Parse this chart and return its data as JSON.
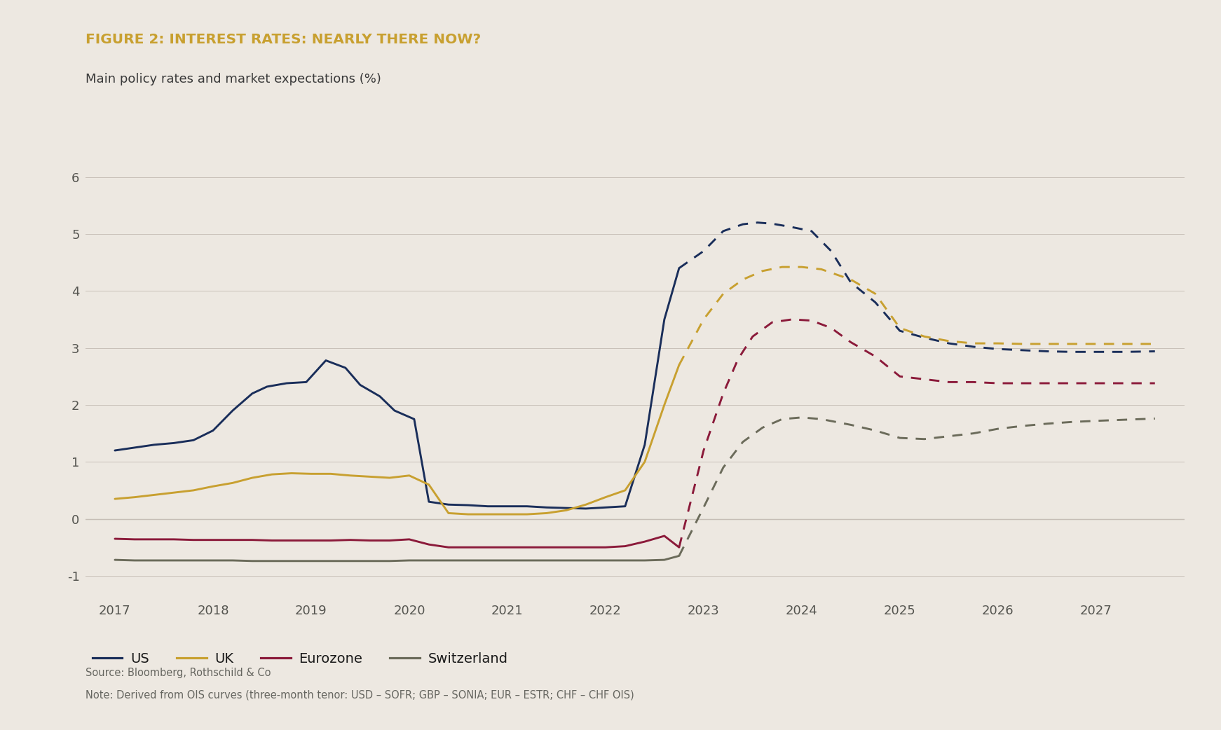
{
  "title": "FIGURE 2: INTEREST RATES: NEARLY THERE NOW?",
  "subtitle": "Main policy rates and market expectations (%)",
  "source": "Source: Bloomberg, Rothschild & Co",
  "note": "Note: Derived from OIS curves (three-month tenor: USD – SOFR; GBP – SONIA; EUR – ESTR; CHF – CHF OIS)",
  "background_color": "#ede8e1",
  "title_color": "#c8a030",
  "subtitle_color": "#3a3a3a",
  "ylim": [
    -1.4,
    6.8
  ],
  "yticks": [
    -1,
    0,
    1,
    2,
    3,
    4,
    5,
    6
  ],
  "colors": {
    "US": "#1a2e5a",
    "UK": "#c8a030",
    "Eurozone": "#8b1a3a",
    "Switzerland": "#6b6b5a"
  },
  "series": {
    "US": {
      "solid_x": [
        2017.0,
        2017.2,
        2017.4,
        2017.6,
        2017.8,
        2018.0,
        2018.2,
        2018.4,
        2018.55,
        2018.75,
        2018.95,
        2019.15,
        2019.35,
        2019.5,
        2019.7,
        2019.85,
        2020.05,
        2020.2,
        2020.4,
        2020.6,
        2020.8,
        2021.0,
        2021.2,
        2021.4,
        2021.6,
        2021.8,
        2022.0,
        2022.2,
        2022.4,
        2022.6,
        2022.75
      ],
      "solid_y": [
        1.2,
        1.25,
        1.3,
        1.33,
        1.38,
        1.55,
        1.9,
        2.2,
        2.32,
        2.38,
        2.4,
        2.78,
        2.65,
        2.35,
        2.15,
        1.9,
        1.75,
        0.3,
        0.25,
        0.24,
        0.22,
        0.22,
        0.22,
        0.2,
        0.19,
        0.18,
        0.2,
        0.22,
        1.3,
        3.5,
        4.4
      ],
      "dash_x": [
        2022.75,
        2023.0,
        2023.2,
        2023.4,
        2023.55,
        2023.7,
        2023.9,
        2024.1,
        2024.3,
        2024.5,
        2024.75,
        2025.0,
        2025.25,
        2025.5,
        2025.75,
        2026.0,
        2026.25,
        2026.5,
        2026.75,
        2027.0,
        2027.3,
        2027.6
      ],
      "dash_y": [
        4.4,
        4.7,
        5.05,
        5.17,
        5.2,
        5.18,
        5.12,
        5.05,
        4.7,
        4.15,
        3.8,
        3.3,
        3.18,
        3.08,
        3.02,
        2.98,
        2.96,
        2.94,
        2.93,
        2.93,
        2.93,
        2.94
      ]
    },
    "UK": {
      "solid_x": [
        2017.0,
        2017.2,
        2017.4,
        2017.6,
        2017.8,
        2018.0,
        2018.2,
        2018.4,
        2018.6,
        2018.8,
        2019.0,
        2019.2,
        2019.4,
        2019.6,
        2019.8,
        2020.0,
        2020.2,
        2020.4,
        2020.6,
        2020.8,
        2021.0,
        2021.2,
        2021.4,
        2021.6,
        2021.8,
        2022.0,
        2022.2,
        2022.4,
        2022.6,
        2022.75
      ],
      "solid_y": [
        0.35,
        0.38,
        0.42,
        0.46,
        0.5,
        0.57,
        0.63,
        0.72,
        0.78,
        0.8,
        0.79,
        0.79,
        0.76,
        0.74,
        0.72,
        0.76,
        0.6,
        0.1,
        0.08,
        0.08,
        0.08,
        0.08,
        0.1,
        0.15,
        0.25,
        0.38,
        0.5,
        1.0,
        2.0,
        2.7
      ],
      "dash_x": [
        2022.75,
        2023.0,
        2023.2,
        2023.4,
        2023.6,
        2023.8,
        2024.0,
        2024.2,
        2024.5,
        2024.75,
        2025.0,
        2025.25,
        2025.5,
        2025.75,
        2026.0,
        2026.25,
        2026.5,
        2026.75,
        2027.0,
        2027.3,
        2027.6
      ],
      "dash_y": [
        2.7,
        3.5,
        3.95,
        4.2,
        4.35,
        4.42,
        4.42,
        4.38,
        4.2,
        3.95,
        3.35,
        3.2,
        3.12,
        3.08,
        3.08,
        3.07,
        3.07,
        3.07,
        3.07,
        3.07,
        3.07
      ]
    },
    "Eurozone": {
      "solid_x": [
        2017.0,
        2017.2,
        2017.4,
        2017.6,
        2017.8,
        2018.0,
        2018.2,
        2018.4,
        2018.6,
        2018.8,
        2019.0,
        2019.2,
        2019.4,
        2019.6,
        2019.8,
        2020.0,
        2020.2,
        2020.4,
        2020.6,
        2020.8,
        2021.0,
        2021.2,
        2021.4,
        2021.6,
        2021.8,
        2022.0,
        2022.2,
        2022.4,
        2022.6,
        2022.75
      ],
      "solid_y": [
        -0.35,
        -0.36,
        -0.36,
        -0.36,
        -0.37,
        -0.37,
        -0.37,
        -0.37,
        -0.38,
        -0.38,
        -0.38,
        -0.38,
        -0.37,
        -0.38,
        -0.38,
        -0.36,
        -0.45,
        -0.5,
        -0.5,
        -0.5,
        -0.5,
        -0.5,
        -0.5,
        -0.5,
        -0.5,
        -0.5,
        -0.48,
        -0.4,
        -0.3,
        -0.5
      ],
      "dash_x": [
        2022.75,
        2023.0,
        2023.2,
        2023.35,
        2023.5,
        2023.7,
        2023.9,
        2024.1,
        2024.3,
        2024.5,
        2024.75,
        2025.0,
        2025.25,
        2025.5,
        2025.75,
        2026.0,
        2026.25,
        2026.5,
        2026.75,
        2027.0,
        2027.3,
        2027.6
      ],
      "dash_y": [
        -0.5,
        1.2,
        2.2,
        2.8,
        3.2,
        3.45,
        3.5,
        3.48,
        3.35,
        3.1,
        2.85,
        2.5,
        2.45,
        2.4,
        2.4,
        2.38,
        2.38,
        2.38,
        2.38,
        2.38,
        2.38,
        2.38
      ]
    },
    "Switzerland": {
      "solid_x": [
        2017.0,
        2017.2,
        2017.4,
        2017.6,
        2017.8,
        2018.0,
        2018.2,
        2018.4,
        2018.6,
        2018.8,
        2019.0,
        2019.2,
        2019.4,
        2019.6,
        2019.8,
        2020.0,
        2020.2,
        2020.4,
        2020.6,
        2020.8,
        2021.0,
        2021.2,
        2021.4,
        2021.6,
        2021.8,
        2022.0,
        2022.2,
        2022.4,
        2022.6,
        2022.75
      ],
      "solid_y": [
        -0.72,
        -0.73,
        -0.73,
        -0.73,
        -0.73,
        -0.73,
        -0.73,
        -0.74,
        -0.74,
        -0.74,
        -0.74,
        -0.74,
        -0.74,
        -0.74,
        -0.74,
        -0.73,
        -0.73,
        -0.73,
        -0.73,
        -0.73,
        -0.73,
        -0.73,
        -0.73,
        -0.73,
        -0.73,
        -0.73,
        -0.73,
        -0.73,
        -0.72,
        -0.65
      ],
      "dash_x": [
        2022.75,
        2023.0,
        2023.2,
        2023.4,
        2023.6,
        2023.8,
        2024.0,
        2024.2,
        2024.5,
        2024.75,
        2025.0,
        2025.25,
        2025.5,
        2025.75,
        2026.0,
        2026.25,
        2026.5,
        2026.75,
        2027.0,
        2027.3,
        2027.6
      ],
      "dash_y": [
        -0.65,
        0.2,
        0.9,
        1.35,
        1.6,
        1.75,
        1.78,
        1.75,
        1.65,
        1.55,
        1.42,
        1.4,
        1.45,
        1.5,
        1.58,
        1.63,
        1.67,
        1.7,
        1.72,
        1.74,
        1.76
      ]
    }
  },
  "legend": [
    "US",
    "UK",
    "Eurozone",
    "Switzerland"
  ],
  "xtick_labels": [
    "2017",
    "2018",
    "2019",
    "2020",
    "2021",
    "2022",
    "2023",
    "2024",
    "2025",
    "2026",
    "2027"
  ],
  "xtick_positions": [
    2017,
    2018,
    2019,
    2020,
    2021,
    2022,
    2023,
    2024,
    2025,
    2026,
    2027
  ],
  "xlim": [
    2016.7,
    2027.9
  ],
  "linewidth": 2.1,
  "grid_color": "#c8c0b8",
  "tick_color": "#555550",
  "footnote_color": "#666660"
}
